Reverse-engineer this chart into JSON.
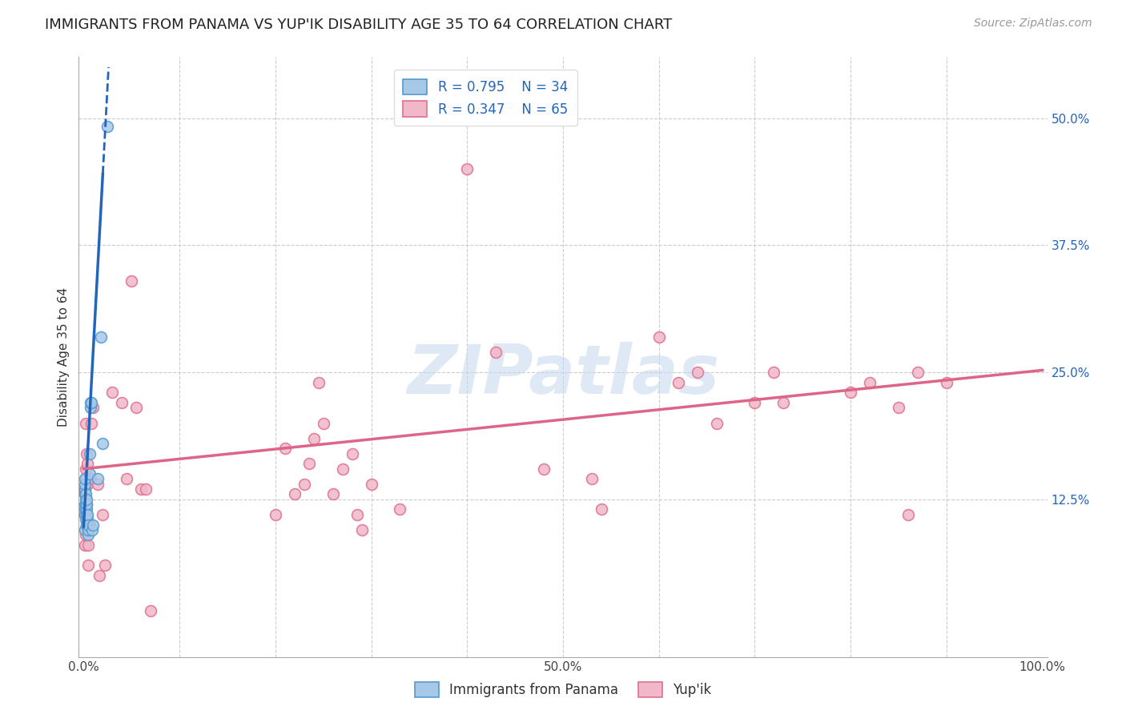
{
  "title": "IMMIGRANTS FROM PANAMA VS YUP'IK DISABILITY AGE 35 TO 64 CORRELATION CHART",
  "source_text": "Source: ZipAtlas.com",
  "ylabel": "Disability Age 35 to 64",
  "xlim": [
    -0.005,
    1.005
  ],
  "ylim": [
    -0.03,
    0.56
  ],
  "xticks": [
    0.0,
    0.1,
    0.2,
    0.3,
    0.4,
    0.5,
    0.6,
    0.7,
    0.8,
    0.9,
    1.0
  ],
  "xticklabels": [
    "0.0%",
    "",
    "",
    "",
    "",
    "50.0%",
    "",
    "",
    "",
    "",
    "100.0%"
  ],
  "yticks": [
    0.0,
    0.125,
    0.25,
    0.375,
    0.5
  ],
  "yticklabels": [
    "",
    "12.5%",
    "25.0%",
    "37.5%",
    "50.0%"
  ],
  "legend_r1": "R = 0.795",
  "legend_n1": "N = 34",
  "legend_r2": "R = 0.347",
  "legend_n2": "N = 65",
  "blue_face_color": "#a8c8e8",
  "blue_edge_color": "#5599cc",
  "pink_face_color": "#f0b8c8",
  "pink_edge_color": "#e07090",
  "blue_line_color": "#2266bb",
  "pink_line_color": "#dd6688",
  "legend_text_color": "#2266bb",
  "ytick_color": "#2266bb",
  "blue_scatter": [
    [
      0.001,
      0.095
    ],
    [
      0.001,
      0.11
    ],
    [
      0.001,
      0.115
    ],
    [
      0.001,
      0.12
    ],
    [
      0.001,
      0.13
    ],
    [
      0.001,
      0.135
    ],
    [
      0.001,
      0.14
    ],
    [
      0.001,
      0.145
    ],
    [
      0.002,
      0.105
    ],
    [
      0.002,
      0.115
    ],
    [
      0.002,
      0.12
    ],
    [
      0.002,
      0.125
    ],
    [
      0.002,
      0.13
    ],
    [
      0.003,
      0.1
    ],
    [
      0.003,
      0.11
    ],
    [
      0.003,
      0.115
    ],
    [
      0.003,
      0.12
    ],
    [
      0.003,
      0.125
    ],
    [
      0.004,
      0.105
    ],
    [
      0.004,
      0.11
    ],
    [
      0.005,
      0.09
    ],
    [
      0.005,
      0.095
    ],
    [
      0.005,
      0.1
    ],
    [
      0.006,
      0.15
    ],
    [
      0.006,
      0.17
    ],
    [
      0.007,
      0.215
    ],
    [
      0.007,
      0.22
    ],
    [
      0.008,
      0.22
    ],
    [
      0.009,
      0.095
    ],
    [
      0.01,
      0.1
    ],
    [
      0.015,
      0.145
    ],
    [
      0.018,
      0.285
    ],
    [
      0.02,
      0.18
    ],
    [
      0.025,
      0.492
    ]
  ],
  "pink_scatter": [
    [
      0.001,
      0.08
    ],
    [
      0.001,
      0.11
    ],
    [
      0.001,
      0.13
    ],
    [
      0.001,
      0.135
    ],
    [
      0.002,
      0.09
    ],
    [
      0.002,
      0.115
    ],
    [
      0.002,
      0.145
    ],
    [
      0.002,
      0.155
    ],
    [
      0.002,
      0.2
    ],
    [
      0.003,
      0.1
    ],
    [
      0.003,
      0.12
    ],
    [
      0.003,
      0.17
    ],
    [
      0.004,
      0.14
    ],
    [
      0.004,
      0.16
    ],
    [
      0.005,
      0.06
    ],
    [
      0.005,
      0.08
    ],
    [
      0.006,
      0.1
    ],
    [
      0.007,
      0.145
    ],
    [
      0.008,
      0.2
    ],
    [
      0.01,
      0.215
    ],
    [
      0.015,
      0.14
    ],
    [
      0.016,
      0.05
    ],
    [
      0.02,
      0.11
    ],
    [
      0.022,
      0.06
    ],
    [
      0.03,
      0.23
    ],
    [
      0.04,
      0.22
    ],
    [
      0.045,
      0.145
    ],
    [
      0.05,
      0.34
    ],
    [
      0.055,
      0.215
    ],
    [
      0.06,
      0.135
    ],
    [
      0.065,
      0.135
    ],
    [
      0.07,
      0.015
    ],
    [
      0.2,
      0.11
    ],
    [
      0.21,
      0.175
    ],
    [
      0.22,
      0.13
    ],
    [
      0.23,
      0.14
    ],
    [
      0.235,
      0.16
    ],
    [
      0.24,
      0.185
    ],
    [
      0.245,
      0.24
    ],
    [
      0.25,
      0.2
    ],
    [
      0.26,
      0.13
    ],
    [
      0.27,
      0.155
    ],
    [
      0.28,
      0.17
    ],
    [
      0.285,
      0.11
    ],
    [
      0.29,
      0.095
    ],
    [
      0.3,
      0.14
    ],
    [
      0.33,
      0.115
    ],
    [
      0.4,
      0.45
    ],
    [
      0.43,
      0.27
    ],
    [
      0.48,
      0.155
    ],
    [
      0.53,
      0.145
    ],
    [
      0.54,
      0.115
    ],
    [
      0.6,
      0.285
    ],
    [
      0.62,
      0.24
    ],
    [
      0.64,
      0.25
    ],
    [
      0.66,
      0.2
    ],
    [
      0.7,
      0.22
    ],
    [
      0.72,
      0.25
    ],
    [
      0.73,
      0.22
    ],
    [
      0.8,
      0.23
    ],
    [
      0.82,
      0.24
    ],
    [
      0.85,
      0.215
    ],
    [
      0.86,
      0.11
    ],
    [
      0.87,
      0.25
    ],
    [
      0.9,
      0.24
    ]
  ],
  "blue_trendline_solid": [
    [
      0.0,
      0.098
    ],
    [
      0.02,
      0.445
    ]
  ],
  "blue_trendline_dashed": [
    [
      0.02,
      0.445
    ],
    [
      0.026,
      0.55
    ]
  ],
  "pink_trendline": [
    [
      0.0,
      0.155
    ],
    [
      1.0,
      0.252
    ]
  ],
  "watermark": "ZIPatlas",
  "watermark_color": "#c5d8f0",
  "grid_color": "#cccccc",
  "title_fontsize": 13,
  "axis_label_fontsize": 11,
  "tick_fontsize": 11,
  "legend_fontsize": 12,
  "source_fontsize": 10,
  "marker_size": 100
}
